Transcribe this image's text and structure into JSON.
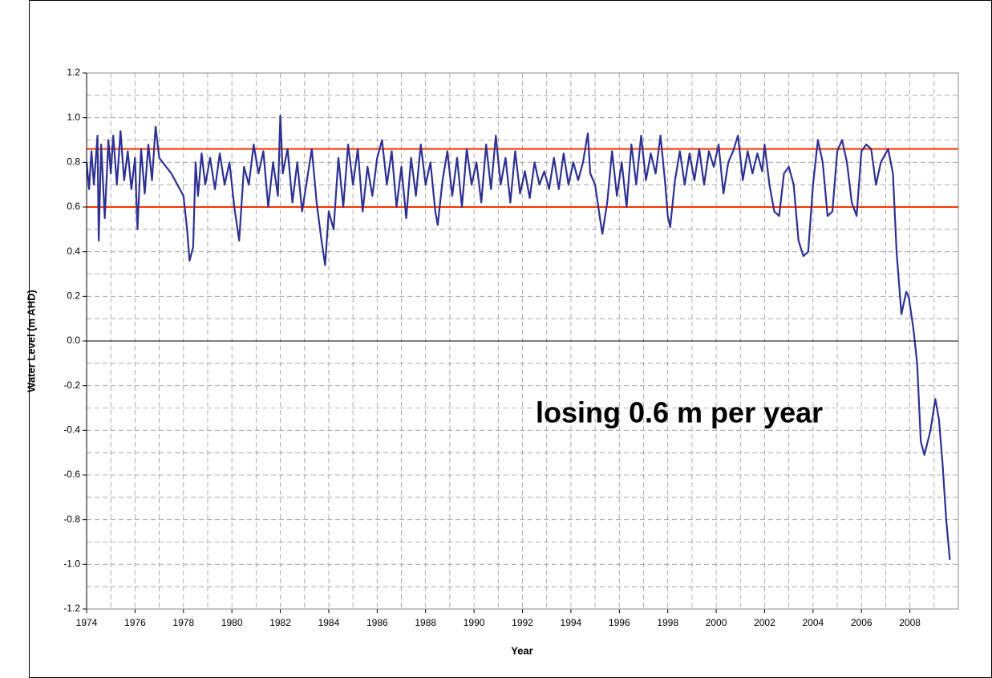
{
  "chart_data": {
    "type": "line",
    "xlabel": "Year",
    "ylabel": "Water Level (m AHD)",
    "annotation": "losing 0.6 m per year",
    "xlim": [
      1974,
      2010
    ],
    "xticks": [
      1974,
      1976,
      1978,
      1980,
      1982,
      1984,
      1986,
      1988,
      1990,
      1992,
      1994,
      1996,
      1998,
      2000,
      2002,
      2004,
      2006,
      2008
    ],
    "ylim": [
      -1.2,
      1.2
    ],
    "yticks": [
      {
        "value": -1.2,
        "label": "-1.2"
      },
      {
        "value": -1.0,
        "label": "-1.0"
      },
      -0.8,
      -0.6,
      -0.4,
      -0.2,
      {
        "value": 0,
        "label": "0.0"
      },
      0.2,
      0.4,
      0.6,
      0.8,
      {
        "value": 1.0,
        "label": "1.0"
      },
      1.2
    ],
    "grid": true,
    "minor_grid": true,
    "hlines": [
      {
        "value": 0.86,
        "color": "#ff3300"
      },
      {
        "value": 0.6,
        "color": "#ff3300"
      }
    ],
    "series": [
      {
        "color": "#2e3192",
        "x": [
          1974.0,
          1974.1,
          1974.2,
          1974.3,
          1974.45,
          1974.5,
          1974.6,
          1974.75,
          1974.9,
          1975.0,
          1975.1,
          1975.25,
          1975.4,
          1975.55,
          1975.7,
          1975.85,
          1976.0,
          1976.1,
          1976.25,
          1976.4,
          1976.55,
          1976.7,
          1976.85,
          1977.0,
          1977.5,
          1978.0,
          1978.15,
          1978.25,
          1978.4,
          1978.5,
          1978.6,
          1978.75,
          1978.9,
          1979.1,
          1979.3,
          1979.5,
          1979.7,
          1979.9,
          1980.1,
          1980.3,
          1980.5,
          1980.7,
          1980.9,
          1981.1,
          1981.3,
          1981.5,
          1981.7,
          1981.9,
          1982.0,
          1982.1,
          1982.3,
          1982.5,
          1982.7,
          1982.9,
          1983.1,
          1983.3,
          1983.5,
          1983.7,
          1983.85,
          1984.0,
          1984.2,
          1984.4,
          1984.6,
          1984.8,
          1985.0,
          1985.2,
          1985.4,
          1985.6,
          1985.8,
          1986.0,
          1986.2,
          1986.4,
          1986.6,
          1986.8,
          1987.0,
          1987.2,
          1987.4,
          1987.6,
          1987.8,
          1988.0,
          1988.2,
          1988.4,
          1988.5,
          1988.7,
          1988.9,
          1989.1,
          1989.3,
          1989.5,
          1989.7,
          1989.9,
          1990.1,
          1990.3,
          1990.5,
          1990.7,
          1990.9,
          1991.1,
          1991.3,
          1991.5,
          1991.7,
          1991.9,
          1992.1,
          1992.3,
          1992.5,
          1992.7,
          1992.9,
          1993.1,
          1993.3,
          1993.5,
          1993.7,
          1993.9,
          1994.1,
          1994.3,
          1994.5,
          1994.7,
          1994.8,
          1995.0,
          1995.2,
          1995.3,
          1995.5,
          1995.7,
          1995.9,
          1996.1,
          1996.3,
          1996.5,
          1996.7,
          1996.9,
          1997.1,
          1997.3,
          1997.5,
          1997.7,
          1997.9,
          1998.0,
          1998.1,
          1998.3,
          1998.5,
          1998.7,
          1998.9,
          1999.1,
          1999.3,
          1999.5,
          1999.7,
          1999.9,
          2000.1,
          2000.3,
          2000.5,
          2000.7,
          2000.9,
          2001.1,
          2001.3,
          2001.5,
          2001.7,
          2001.9,
          2002.0,
          2002.2,
          2002.4,
          2002.6,
          2002.8,
          2003.0,
          2003.2,
          2003.4,
          2003.6,
          2003.8,
          2004.0,
          2004.2,
          2004.4,
          2004.6,
          2004.8,
          2005.0,
          2005.2,
          2005.4,
          2005.6,
          2005.8,
          2006.0,
          2006.2,
          2006.4,
          2006.6,
          2006.8,
          2007.0,
          2007.1,
          2007.3,
          2007.45,
          2007.65,
          2007.85,
          2007.95,
          2008.15,
          2008.3,
          2008.45,
          2008.6,
          2008.85,
          2009.05,
          2009.2,
          2009.35,
          2009.5,
          2009.65
        ],
        "values": [
          0.8,
          0.68,
          0.85,
          0.7,
          0.92,
          0.45,
          0.88,
          0.55,
          0.9,
          0.75,
          0.92,
          0.7,
          0.94,
          0.72,
          0.85,
          0.68,
          0.82,
          0.5,
          0.86,
          0.66,
          0.88,
          0.72,
          0.96,
          0.82,
          0.75,
          0.65,
          0.5,
          0.36,
          0.42,
          0.8,
          0.65,
          0.84,
          0.7,
          0.82,
          0.68,
          0.84,
          0.7,
          0.8,
          0.6,
          0.45,
          0.78,
          0.7,
          0.88,
          0.75,
          0.85,
          0.6,
          0.8,
          0.65,
          1.01,
          0.75,
          0.86,
          0.62,
          0.8,
          0.58,
          0.72,
          0.86,
          0.62,
          0.45,
          0.34,
          0.58,
          0.5,
          0.82,
          0.6,
          0.88,
          0.7,
          0.86,
          0.58,
          0.78,
          0.65,
          0.82,
          0.9,
          0.7,
          0.85,
          0.6,
          0.78,
          0.55,
          0.82,
          0.65,
          0.88,
          0.7,
          0.8,
          0.58,
          0.52,
          0.72,
          0.85,
          0.65,
          0.82,
          0.6,
          0.86,
          0.7,
          0.8,
          0.62,
          0.88,
          0.68,
          0.92,
          0.7,
          0.82,
          0.62,
          0.85,
          0.66,
          0.76,
          0.64,
          0.8,
          0.7,
          0.76,
          0.68,
          0.82,
          0.68,
          0.84,
          0.7,
          0.8,
          0.72,
          0.8,
          0.93,
          0.75,
          0.7,
          0.55,
          0.48,
          0.62,
          0.85,
          0.65,
          0.8,
          0.6,
          0.88,
          0.7,
          0.92,
          0.72,
          0.84,
          0.75,
          0.92,
          0.7,
          0.56,
          0.51,
          0.72,
          0.85,
          0.7,
          0.84,
          0.72,
          0.86,
          0.7,
          0.85,
          0.78,
          0.88,
          0.66,
          0.8,
          0.85,
          0.92,
          0.72,
          0.85,
          0.75,
          0.84,
          0.76,
          0.88,
          0.7,
          0.58,
          0.56,
          0.75,
          0.78,
          0.7,
          0.45,
          0.38,
          0.4,
          0.7,
          0.9,
          0.8,
          0.56,
          0.58,
          0.85,
          0.9,
          0.8,
          0.62,
          0.56,
          0.85,
          0.88,
          0.86,
          0.7,
          0.8,
          0.84,
          0.86,
          0.75,
          0.4,
          0.12,
          0.22,
          0.2,
          0.05,
          -0.1,
          -0.45,
          -0.51,
          -0.4,
          -0.26,
          -0.35,
          -0.55,
          -0.8,
          -0.98
        ]
      }
    ]
  }
}
